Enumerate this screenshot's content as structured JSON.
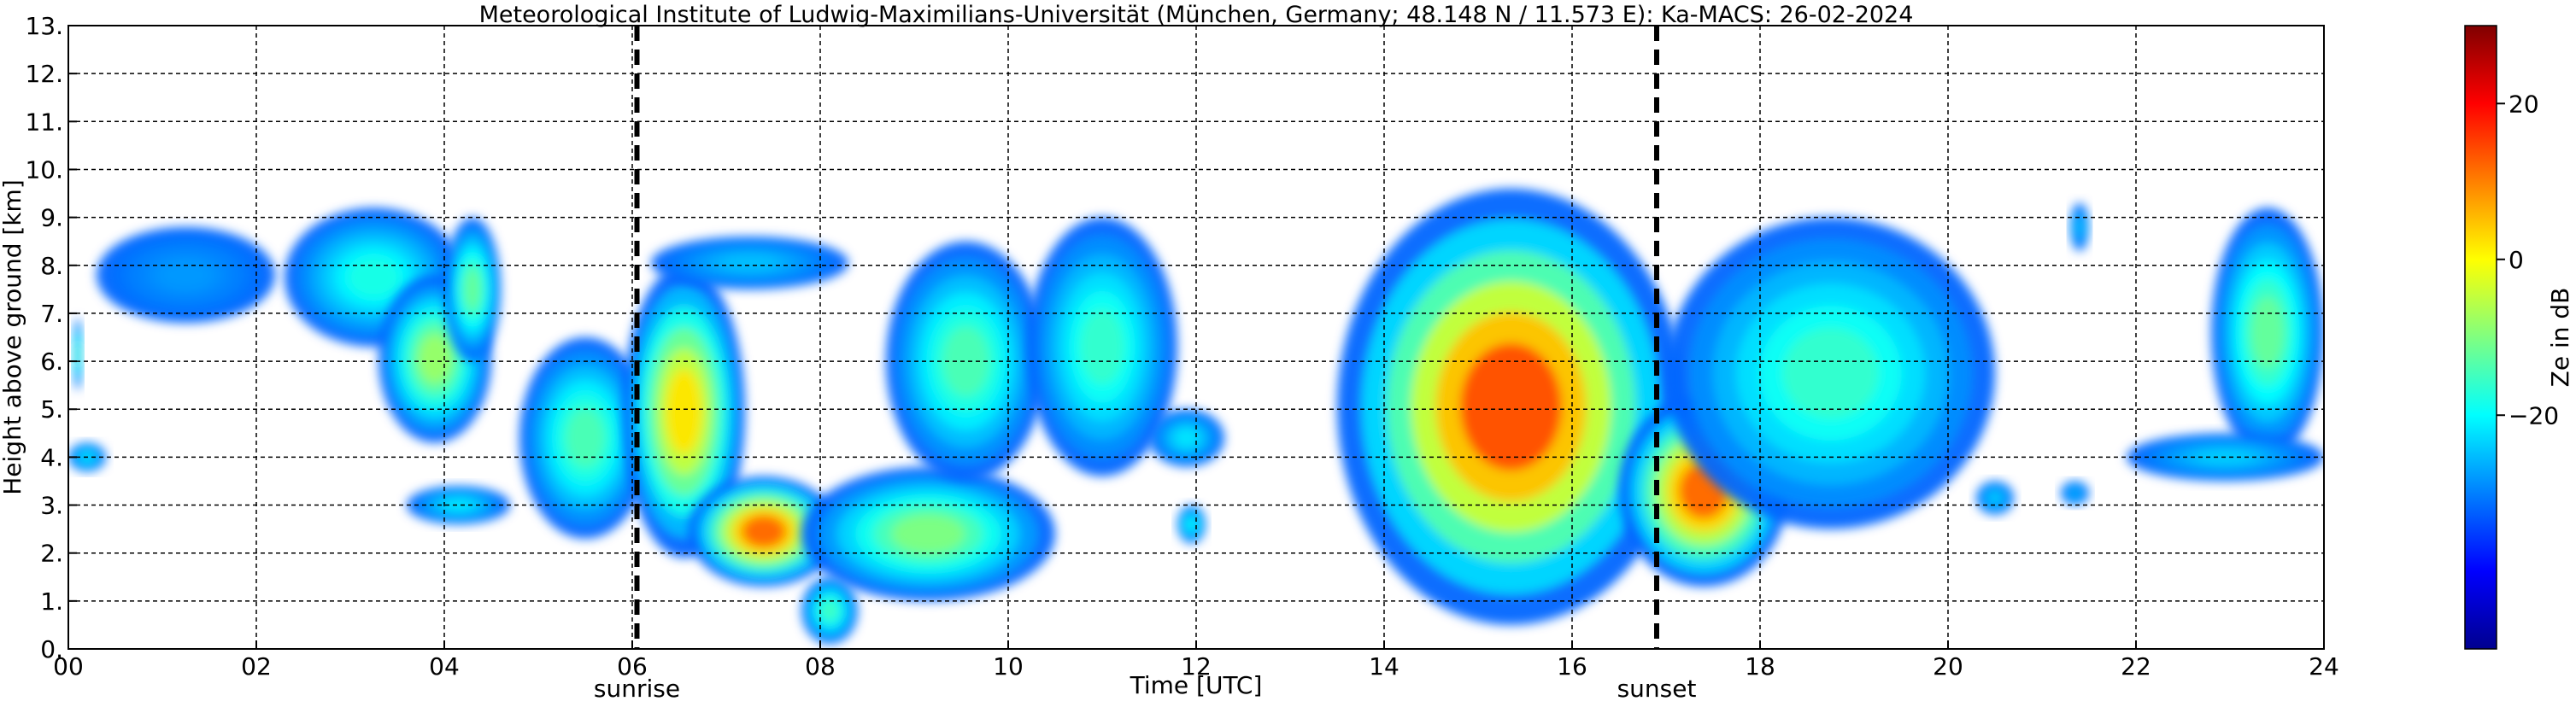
{
  "chart_data": {
    "type": "heatmap",
    "title": "Meteorological Institute of Ludwig-Maximilians-Universität (München, Germany; 48.148 N / 11.573 E):    Ka-MACS: 26-02-2024",
    "xlabel": "Time [UTC]",
    "ylabel": "Height above ground [km]",
    "xlim": [
      0,
      24
    ],
    "ylim": [
      0,
      13
    ],
    "x_ticks": [
      0,
      2,
      4,
      6,
      8,
      10,
      12,
      14,
      16,
      18,
      20,
      22,
      24
    ],
    "x_tick_labels": [
      "00",
      "02",
      "04",
      "06",
      "08",
      "10",
      "12",
      "14",
      "16",
      "18",
      "20",
      "22",
      "24"
    ],
    "y_ticks": [
      0,
      1,
      2,
      3,
      4,
      5,
      6,
      7,
      8,
      9,
      10,
      11,
      12,
      13
    ],
    "y_tick_labels": [
      "0.",
      "1.",
      "2.",
      "3.",
      "4.",
      "5.",
      "6.",
      "7.",
      "8.",
      "9.",
      "10.",
      "11.",
      "12.",
      "13."
    ],
    "grid": true,
    "events": [
      {
        "label": "sunrise",
        "time": 6.05
      },
      {
        "label": "sunset",
        "time": 16.9
      }
    ],
    "colorbar": {
      "label": "Ze in dB",
      "range": [
        -50,
        30
      ],
      "ticks": [
        20,
        0,
        -20
      ],
      "tick_labels": [
        "20",
        "0",
        "−20"
      ],
      "colormap": [
        "#00008f",
        "#0000ff",
        "#0080ff",
        "#00ffff",
        "#80ff80",
        "#ffff00",
        "#ff8000",
        "#ff0000",
        "#800000"
      ]
    },
    "echo_regions": [
      {
        "x0": 0.05,
        "x1": 0.15,
        "y0": 5.4,
        "y1": 6.9,
        "ze_core": -15
      },
      {
        "x0": 0.0,
        "x1": 0.4,
        "y0": 3.7,
        "y1": 4.3,
        "ze_core": -22
      },
      {
        "x0": 0.3,
        "x1": 2.2,
        "y0": 6.8,
        "y1": 8.8,
        "ze_core": -28
      },
      {
        "x0": 2.3,
        "x1": 4.2,
        "y0": 6.3,
        "y1": 9.2,
        "ze_core": -18
      },
      {
        "x0": 3.3,
        "x1": 4.5,
        "y0": 4.3,
        "y1": 7.8,
        "ze_core": -8
      },
      {
        "x0": 4.0,
        "x1": 4.6,
        "y0": 6.0,
        "y1": 9.0,
        "ze_core": -12
      },
      {
        "x0": 3.6,
        "x1": 4.7,
        "y0": 2.6,
        "y1": 3.4,
        "ze_core": -22
      },
      {
        "x0": 4.8,
        "x1": 6.2,
        "y0": 2.3,
        "y1": 6.5,
        "ze_core": -14
      },
      {
        "x0": 5.9,
        "x1": 7.2,
        "y0": 1.9,
        "y1": 8.0,
        "ze_core": 2
      },
      {
        "x0": 6.6,
        "x1": 8.2,
        "y0": 1.3,
        "y1": 3.6,
        "ze_core": 12
      },
      {
        "x0": 7.8,
        "x1": 10.5,
        "y0": 1.0,
        "y1": 3.8,
        "ze_core": -10
      },
      {
        "x0": 7.8,
        "x1": 8.4,
        "y0": 0.1,
        "y1": 1.5,
        "ze_core": -15
      },
      {
        "x0": 6.2,
        "x1": 8.3,
        "y0": 7.5,
        "y1": 8.6,
        "ze_core": -25
      },
      {
        "x0": 8.7,
        "x1": 10.4,
        "y0": 3.5,
        "y1": 8.5,
        "ze_core": -14
      },
      {
        "x0": 10.2,
        "x1": 11.8,
        "y0": 3.6,
        "y1": 9.0,
        "ze_core": -16
      },
      {
        "x0": 11.5,
        "x1": 12.3,
        "y0": 3.8,
        "y1": 5.0,
        "ze_core": -22
      },
      {
        "x0": 11.8,
        "x1": 12.1,
        "y0": 2.2,
        "y1": 3.0,
        "ze_core": -20
      },
      {
        "x0": 13.5,
        "x1": 17.2,
        "y0": 0.5,
        "y1": 9.6,
        "ze_core": 14
      },
      {
        "x0": 16.5,
        "x1": 18.3,
        "y0": 1.3,
        "y1": 5.3,
        "ze_core": 12
      },
      {
        "x0": 17.0,
        "x1": 20.5,
        "y0": 2.5,
        "y1": 9.0,
        "ze_core": -16
      },
      {
        "x0": 20.3,
        "x1": 20.7,
        "y0": 2.8,
        "y1": 3.5,
        "ze_core": -24
      },
      {
        "x0": 21.3,
        "x1": 21.5,
        "y0": 8.3,
        "y1": 9.3,
        "ze_core": -25
      },
      {
        "x0": 21.2,
        "x1": 21.5,
        "y0": 3.0,
        "y1": 3.5,
        "ze_core": -26
      },
      {
        "x0": 22.8,
        "x1": 24.0,
        "y0": 4.0,
        "y1": 9.2,
        "ze_core": -12
      },
      {
        "x0": 21.9,
        "x1": 24.0,
        "y0": 3.5,
        "y1": 4.5,
        "ze_core": -24
      }
    ]
  }
}
